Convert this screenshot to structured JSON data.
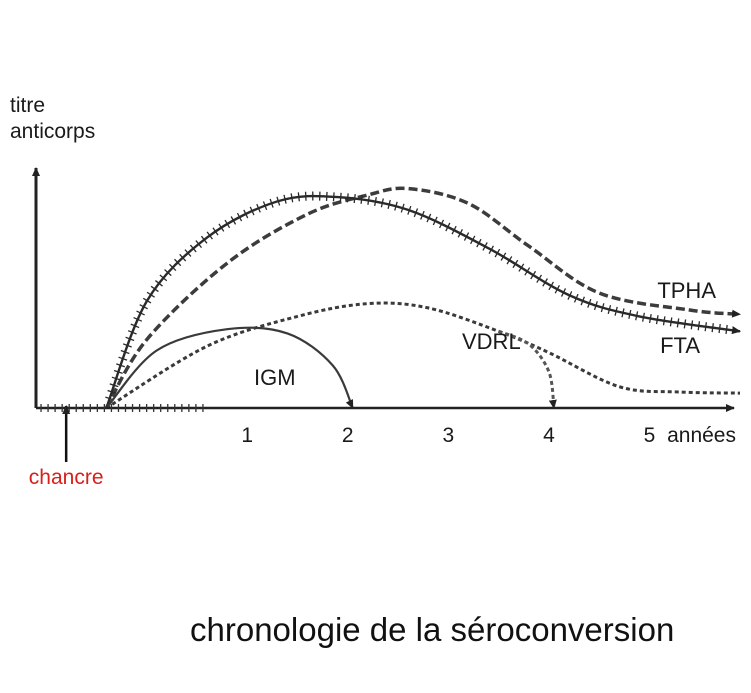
{
  "caption": "chronologie de la séroconversion",
  "chart_data": {
    "type": "line",
    "title": "chronologie de la séroconversion",
    "xlabel": "années",
    "ylabel_lines": [
      "titre",
      "anticorps"
    ],
    "x_ticks": [
      "1",
      "2",
      "3",
      "4",
      "5"
    ],
    "xlim": [
      -1.1,
      5.9
    ],
    "ylim": [
      0,
      10
    ],
    "grid": false,
    "annotations": [
      {
        "text": "chancre",
        "x": -0.8,
        "color": "#d8201b"
      }
    ],
    "series": [
      {
        "name": "TPHA",
        "style": "dashed",
        "color": "#3c3c3c",
        "arrow": true,
        "points": [
          [
            -0.4,
            0
          ],
          [
            0,
            3.2
          ],
          [
            0.8,
            6.8
          ],
          [
            1.6,
            9.1
          ],
          [
            2.2,
            10
          ],
          [
            2.6,
            10.3
          ],
          [
            3.2,
            9.6
          ],
          [
            3.8,
            7.6
          ],
          [
            4.5,
            5.4
          ],
          [
            5.4,
            4.6
          ],
          [
            5.9,
            4.4
          ]
        ]
      },
      {
        "name": "FTA",
        "style": "crossed",
        "color": "#2a2a2a",
        "arrow": true,
        "points": [
          [
            -0.4,
            0
          ],
          [
            0,
            5.0
          ],
          [
            0.6,
            8.0
          ],
          [
            1.3,
            9.7
          ],
          [
            1.9,
            9.9
          ],
          [
            2.6,
            9.3
          ],
          [
            3.4,
            7.5
          ],
          [
            4.2,
            5.3
          ],
          [
            4.9,
            4.3
          ],
          [
            5.9,
            3.6
          ]
        ]
      },
      {
        "name": "VDRL",
        "style": "dotted",
        "color": "#3a3a3a",
        "arrow": false,
        "points": [
          [
            -0.4,
            0
          ],
          [
            0.6,
            2.9
          ],
          [
            1.5,
            4.3
          ],
          [
            2.2,
            4.9
          ],
          [
            2.8,
            4.7
          ],
          [
            3.5,
            3.6
          ],
          [
            4.0,
            2.6
          ],
          [
            4.7,
            1.0
          ],
          [
            5.3,
            0.75
          ],
          [
            5.9,
            0.7
          ]
        ]
      },
      {
        "name": "",
        "style": "dotted",
        "color": "#555555",
        "arrow": true,
        "points": [
          [
            3.5,
            3.6
          ],
          [
            3.8,
            3.0
          ],
          [
            4.0,
            1.7
          ],
          [
            4.05,
            0
          ]
        ]
      },
      {
        "name": "IGM",
        "style": "solid",
        "color": "#3a3a3a",
        "arrow": true,
        "points": [
          [
            -0.4,
            0
          ],
          [
            0.1,
            2.7
          ],
          [
            0.8,
            3.7
          ],
          [
            1.4,
            3.5
          ],
          [
            1.85,
            2.0
          ],
          [
            2.05,
            0
          ]
        ]
      }
    ]
  }
}
